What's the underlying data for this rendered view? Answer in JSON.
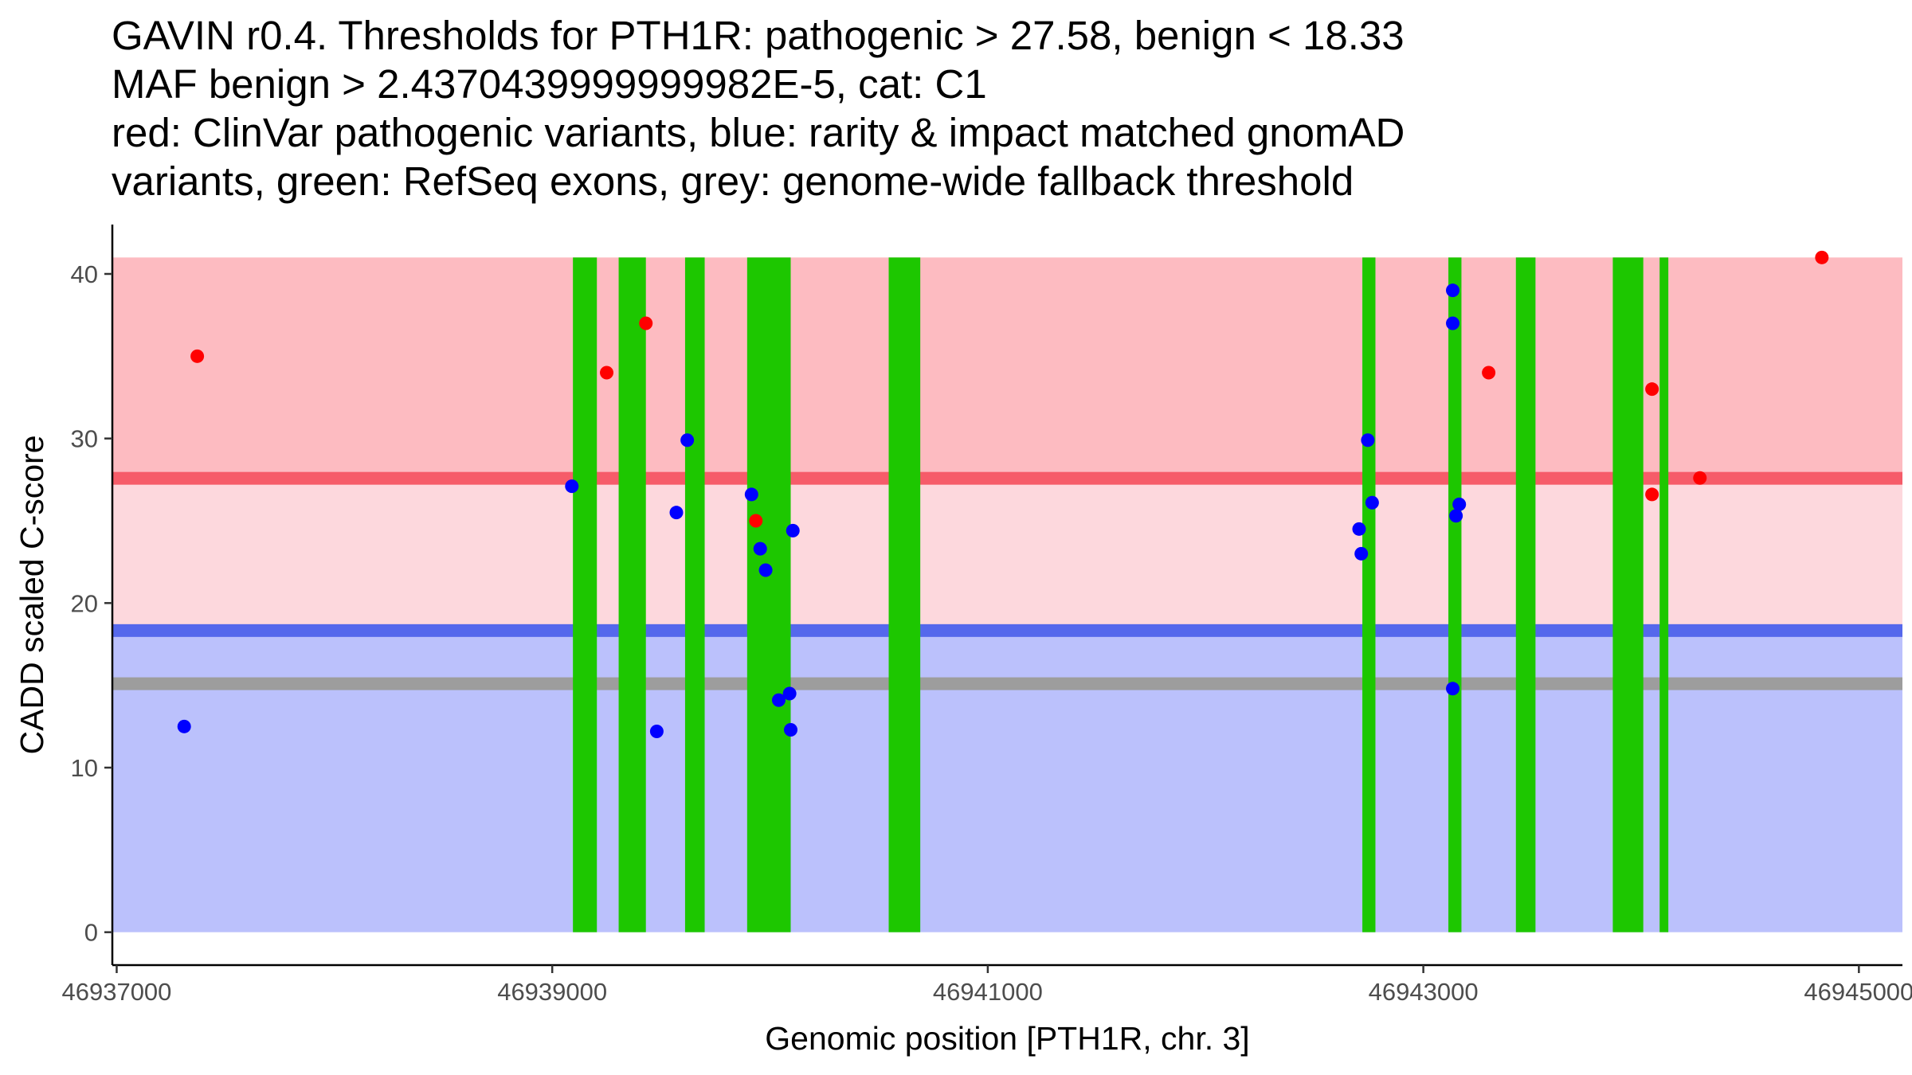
{
  "title_lines": [
    "GAVIN r0.4. Thresholds for PTH1R: pathogenic > 27.58, benign < 18.33",
    "MAF benign > 2.4370439999999982E-5, cat: C1",
    "red: ClinVar pathogenic variants, blue: rarity & impact matched gnomAD",
    "variants, green: RefSeq exons, grey: genome-wide fallback threshold"
  ],
  "chart_data": {
    "type": "scatter",
    "xlabel": "Genomic position [PTH1R, chr. 3]",
    "ylabel": "CADD scaled C-score",
    "xlim": [
      46936980,
      46945200
    ],
    "ylim": [
      -2,
      43
    ],
    "x_ticks": [
      46937000,
      46939000,
      46941000,
      46943000,
      46945000
    ],
    "x_tick_labels": [
      "46937000",
      "46939000",
      "46941000",
      "46943000",
      "46945000"
    ],
    "y_ticks": [
      0,
      10,
      20,
      30,
      40
    ],
    "y_tick_labels": [
      "0",
      "10",
      "20",
      "30",
      "40"
    ],
    "colors": {
      "pathogenic_zone": "#fdbbc1",
      "middle_zone": "#fdd8dd",
      "benign_zone": "#bbc1fc",
      "pathogenic_line": "#f65c69",
      "benign_line": "#5568ec",
      "fallback_line": "#9d9d9d",
      "exon": "#1dc700",
      "clinvar_point": "#ff0000",
      "gnomad_point": "#0000ff"
    },
    "zones": [
      {
        "name": "pathogenic-zone",
        "from": 27.58,
        "to": 41,
        "color": "#fdbbc1"
      },
      {
        "name": "uncertain-zone",
        "from": 18.33,
        "to": 27.58,
        "color": "#fdd8dd"
      },
      {
        "name": "benign-zone",
        "from": 0,
        "to": 18.33,
        "color": "#bbc1fc"
      }
    ],
    "threshold_lines": [
      {
        "name": "pathogenic-threshold",
        "y": 27.58,
        "color": "#f65c69"
      },
      {
        "name": "benign-threshold",
        "y": 18.33,
        "color": "#5568ec"
      },
      {
        "name": "fallback-threshold",
        "y": 15.1,
        "color": "#9d9d9d"
      }
    ],
    "exons": [
      {
        "start": 46939095,
        "end": 46939205
      },
      {
        "start": 46939305,
        "end": 46939430
      },
      {
        "start": 46939610,
        "end": 46939700
      },
      {
        "start": 46939895,
        "end": 46940095
      },
      {
        "start": 46940545,
        "end": 46940690
      },
      {
        "start": 46942720,
        "end": 46942780
      },
      {
        "start": 46943115,
        "end": 46943175
      },
      {
        "start": 46943425,
        "end": 46943515
      },
      {
        "start": 46943870,
        "end": 46944010
      },
      {
        "start": 46944085,
        "end": 46944125
      }
    ],
    "series": [
      {
        "name": "ClinVar pathogenic variants",
        "color": "#ff0000",
        "points": [
          {
            "x": 46937370,
            "y": 35
          },
          {
            "x": 46939250,
            "y": 34
          },
          {
            "x": 46939430,
            "y": 37
          },
          {
            "x": 46939935,
            "y": 25
          },
          {
            "x": 46943300,
            "y": 34
          },
          {
            "x": 46944050,
            "y": 33
          },
          {
            "x": 46944050,
            "y": 26.6
          },
          {
            "x": 46944270,
            "y": 27.6
          },
          {
            "x": 46944830,
            "y": 41
          }
        ]
      },
      {
        "name": "rarity & impact matched gnomAD variants",
        "color": "#0000ff",
        "points": [
          {
            "x": 46937310,
            "y": 12.5
          },
          {
            "x": 46939090,
            "y": 27.1
          },
          {
            "x": 46939480,
            "y": 12.2
          },
          {
            "x": 46939570,
            "y": 25.5
          },
          {
            "x": 46939620,
            "y": 29.9
          },
          {
            "x": 46939915,
            "y": 26.6
          },
          {
            "x": 46939955,
            "y": 23.3
          },
          {
            "x": 46939980,
            "y": 22.0
          },
          {
            "x": 46940040,
            "y": 14.1
          },
          {
            "x": 46940090,
            "y": 14.5
          },
          {
            "x": 46940095,
            "y": 12.3
          },
          {
            "x": 46940105,
            "y": 24.4
          },
          {
            "x": 46942705,
            "y": 24.5
          },
          {
            "x": 46942715,
            "y": 23.0
          },
          {
            "x": 46942745,
            "y": 29.9
          },
          {
            "x": 46942765,
            "y": 26.1
          },
          {
            "x": 46943135,
            "y": 39.0
          },
          {
            "x": 46943135,
            "y": 37.0
          },
          {
            "x": 46943135,
            "y": 14.8
          },
          {
            "x": 46943150,
            "y": 25.3
          },
          {
            "x": 46943165,
            "y": 26.0
          }
        ]
      }
    ]
  }
}
